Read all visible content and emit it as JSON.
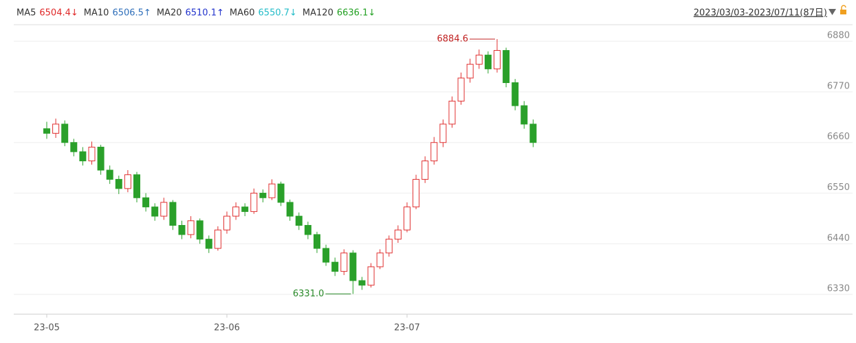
{
  "chart_data": {
    "type": "candlestick",
    "ma_legend": [
      {
        "name": "MA5",
        "text": "6504.4↓",
        "color": "#e02828"
      },
      {
        "name": "MA10",
        "text": "6506.5↑",
        "color": "#2f6fba"
      },
      {
        "name": "MA20",
        "text": "6510.1↑",
        "color": "#2233cc"
      },
      {
        "name": "MA60",
        "text": "6550.7↓",
        "color": "#22bcc8"
      },
      {
        "name": "MA120",
        "text": "6636.1↓",
        "color": "#22a022"
      }
    ],
    "date_range": "2023/03/03-2023/07/11(87日)",
    "high_label": "6884.6",
    "low_label": "6331.0",
    "up_color": "#e03030",
    "down_color": "#2aa02a",
    "grid": true,
    "ylim": [
      6290,
      6910
    ],
    "yticks": [
      6330,
      6440,
      6550,
      6660,
      6770,
      6880
    ],
    "categories": [
      "23-05",
      null,
      null,
      null,
      null,
      null,
      null,
      null,
      null,
      null,
      null,
      null,
      null,
      null,
      null,
      null,
      null,
      null,
      null,
      null,
      "23-06",
      null,
      null,
      null,
      null,
      null,
      null,
      null,
      null,
      null,
      null,
      null,
      null,
      null,
      null,
      null,
      null,
      null,
      null,
      null,
      "23-07",
      null,
      null,
      null,
      null,
      null,
      null,
      null,
      null,
      null,
      null,
      null,
      null,
      null,
      null
    ],
    "open": [
      6690,
      6680,
      6700,
      6660,
      6640,
      6620,
      6650,
      6600,
      6580,
      6560,
      6590,
      6540,
      6520,
      6500,
      6530,
      6480,
      6460,
      6490,
      6450,
      6430,
      6470,
      6500,
      6520,
      6510,
      6550,
      6540,
      6570,
      6530,
      6500,
      6480,
      6460,
      6430,
      6400,
      6380,
      6420,
      6360,
      6350,
      6390,
      6420,
      6450,
      6470,
      6520,
      6580,
      6620,
      6660,
      6700,
      6750,
      6800,
      6830,
      6850,
      6820,
      6860,
      6790,
      6740,
      6700
    ],
    "high": [
      6705,
      6712,
      6708,
      6668,
      6650,
      6662,
      6655,
      6610,
      6588,
      6600,
      6596,
      6550,
      6528,
      6540,
      6535,
      6490,
      6500,
      6495,
      6458,
      6478,
      6510,
      6530,
      6528,
      6560,
      6558,
      6580,
      6575,
      6536,
      6508,
      6488,
      6466,
      6438,
      6410,
      6428,
      6426,
      6368,
      6398,
      6428,
      6458,
      6480,
      6530,
      6590,
      6630,
      6672,
      6710,
      6760,
      6812,
      6842,
      6862,
      6858,
      6884.6,
      6866,
      6798,
      6750,
      6710
    ],
    "low": [
      6668,
      6670,
      6652,
      6630,
      6610,
      6612,
      6590,
      6570,
      6548,
      6552,
      6530,
      6510,
      6490,
      6492,
      6470,
      6450,
      6452,
      6440,
      6420,
      6425,
      6462,
      6492,
      6500,
      6505,
      6530,
      6535,
      6522,
      6490,
      6470,
      6450,
      6420,
      6392,
      6370,
      6372,
      6331,
      6340,
      6345,
      6385,
      6412,
      6442,
      6465,
      6515,
      6572,
      6612,
      6650,
      6692,
      6742,
      6790,
      6820,
      6810,
      6812,
      6780,
      6730,
      6690,
      6650
    ],
    "close": [
      6680,
      6700,
      6660,
      6640,
      6620,
      6650,
      6600,
      6580,
      6560,
      6590,
      6540,
      6520,
      6500,
      6530,
      6480,
      6460,
      6490,
      6450,
      6430,
      6470,
      6500,
      6520,
      6510,
      6550,
      6540,
      6570,
      6530,
      6500,
      6480,
      6460,
      6430,
      6400,
      6380,
      6420,
      6360,
      6350,
      6390,
      6420,
      6450,
      6470,
      6520,
      6580,
      6620,
      6660,
      6700,
      6750,
      6800,
      6830,
      6850,
      6820,
      6860,
      6790,
      6740,
      6700,
      6660
    ]
  }
}
